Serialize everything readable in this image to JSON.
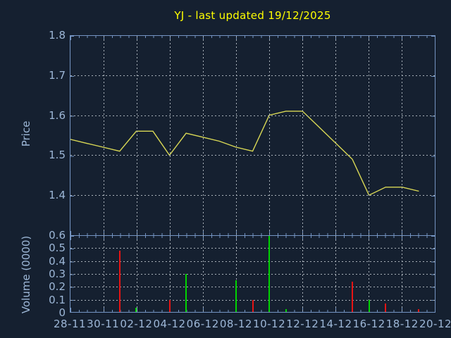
{
  "chart_data": {
    "type": "line",
    "title": "YJ - last updated 19/12/2025",
    "x": [
      "28-11",
      "29-11",
      "30-11",
      "01-12",
      "02-12",
      "03-12",
      "04-12",
      "05-12",
      "06-12",
      "07-12",
      "08-12",
      "09-12",
      "10-12",
      "11-12",
      "12-12",
      "13-12",
      "14-12",
      "15-12",
      "16-12",
      "17-12",
      "18-12",
      "19-12"
    ],
    "x_tick_labels": [
      "28-11",
      "30-11",
      "02-12",
      "04-12",
      "06-12",
      "08-12",
      "10-12",
      "12-12",
      "14-12",
      "16-12",
      "18-12",
      "20-12"
    ],
    "grid": true,
    "legend": "none",
    "price": {
      "ylabel": "Price",
      "ylim": [
        1.3,
        1.8
      ],
      "yticks": [
        "1.8",
        "1.7",
        "1.6",
        "1.5",
        "1.4"
      ],
      "line_color": "#d9d855",
      "values": [
        1.54,
        1.53,
        1.52,
        1.51,
        1.56,
        1.56,
        1.5,
        1.555,
        1.545,
        1.535,
        1.52,
        1.51,
        1.6,
        1.61,
        1.61,
        1.57,
        1.53,
        1.49,
        1.4,
        1.42,
        1.42,
        1.41
      ]
    },
    "volume": {
      "ylabel": "Volume (0000)",
      "ylim": [
        0,
        0.6
      ],
      "yticks": [
        "0.6",
        "0.5",
        "0.4",
        "0.3",
        "0.2",
        "0.1",
        "0"
      ],
      "up_color": "#00d300",
      "down_color": "#e61414",
      "values": [
        0,
        0,
        0,
        0.48,
        0.04,
        0,
        0.1,
        0.3,
        0,
        0,
        0.25,
        0.1,
        0.6,
        0.03,
        0,
        0,
        0,
        0.24,
        0.1,
        0.07,
        0,
        0.03
      ],
      "colors": [
        "",
        "",
        "",
        "red",
        "green",
        "",
        "red",
        "green",
        "",
        "",
        "green",
        "red",
        "green",
        "green",
        "",
        "",
        "",
        "red",
        "green",
        "red",
        "",
        "red"
      ]
    },
    "colors": {
      "background": "#152030",
      "axis": "#7494c2",
      "tick_text": "#9db7d7",
      "gridline": "#a9b1b9",
      "title": "#ffff00"
    }
  }
}
